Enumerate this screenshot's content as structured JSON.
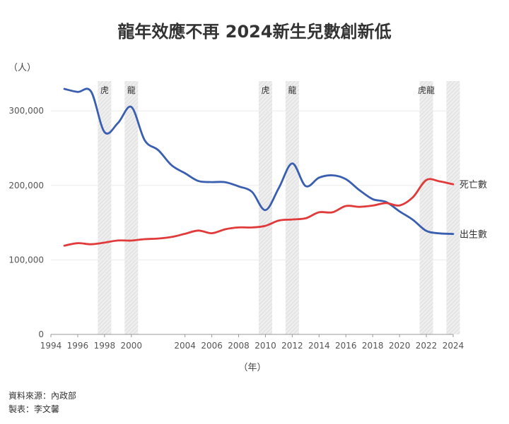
{
  "title": "龍年效應不再 2024新生兒數創新低",
  "ylabel": "（人）",
  "xlabel": "（年）",
  "footer": {
    "source": "資料來源：內政部",
    "author": "製表：李文馨"
  },
  "chart_data": {
    "type": "line",
    "title": "龍年效應不再 2024新生兒數創新低",
    "xlabel": "（年）",
    "ylabel": "（人）",
    "xlim": [
      1994,
      2024
    ],
    "ylim": [
      0,
      340000
    ],
    "x_ticks": [
      "1994",
      "1996",
      "1998",
      "2000",
      "2004",
      "2006",
      "2008",
      "2010",
      "2012",
      "2014",
      "2016",
      "2018",
      "2020",
      "2022",
      "2024"
    ],
    "y_ticks": [
      {
        "value": 0,
        "label": "0"
      },
      {
        "value": 100000,
        "label": "100,000"
      },
      {
        "value": 200000,
        "label": "200,000"
      },
      {
        "value": 300000,
        "label": "300,000"
      }
    ],
    "grid": true,
    "bands": [
      {
        "year": 1998,
        "label": "虎"
      },
      {
        "year": 2000,
        "label": "龍"
      },
      {
        "year": 2010,
        "label": "虎"
      },
      {
        "year": 2012,
        "label": "龍"
      },
      {
        "year": 2022,
        "label": "虎龍"
      },
      {
        "year": 2024,
        "label": ""
      }
    ],
    "x": [
      1995,
      1996,
      1997,
      1998,
      1999,
      2000,
      2001,
      2002,
      2003,
      2004,
      2005,
      2006,
      2007,
      2008,
      2009,
      2010,
      2011,
      2012,
      2013,
      2014,
      2015,
      2016,
      2017,
      2018,
      2019,
      2020,
      2021,
      2022,
      2023,
      2024
    ],
    "series": [
      {
        "name": "出生數",
        "color": "#3a5fb0",
        "values": [
          329600,
          325500,
          326000,
          271500,
          283700,
          305300,
          260400,
          247500,
          227100,
          216400,
          205900,
          204500,
          204400,
          198700,
          191300,
          166900,
          196600,
          229500,
          199100,
          210400,
          213600,
          208400,
          193800,
          181600,
          177800,
          165200,
          153800,
          138900,
          135600,
          134900
        ]
      },
      {
        "name": "死亡數",
        "color": "#e03a3a",
        "values": [
          119100,
          122500,
          121000,
          123200,
          126100,
          126000,
          127900,
          128700,
          130800,
          135100,
          139400,
          135800,
          141100,
          143600,
          143600,
          145800,
          152900,
          154300,
          155900,
          163900,
          163900,
          172400,
          171200,
          172900,
          176300,
          173100,
          184200,
          207200,
          205400,
          201500
        ]
      }
    ]
  }
}
